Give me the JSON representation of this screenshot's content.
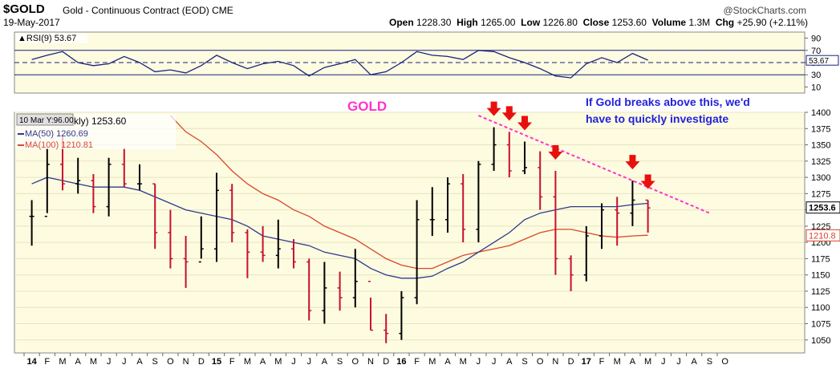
{
  "header": {
    "symbol": "$GOLD",
    "description": "Gold - Continuous Contract (EOD)",
    "exchange": "CME",
    "credit": "@StockCharts.com",
    "date": "19-May-2017",
    "open_label": "Open",
    "open": "1228.30",
    "high_label": "High",
    "high": "1265.00",
    "low_label": "Low",
    "low": "1226.80",
    "close_label": "Close",
    "close": "1253.60",
    "volume_label": "Volume",
    "volume": "1.3M",
    "chg_label": "Chg",
    "chg": "+25.90 (+2.11%)"
  },
  "colors": {
    "background": "#fdfbe0",
    "up_bar": "#000000",
    "down_bar": "#c8102e",
    "ma50": "#2e3a8c",
    "ma100": "#d9472b",
    "trendline": "#ff33cc",
    "arrow": "#e8100e",
    "annotation_text": "#2222dd",
    "gold_label": "#ff33cc"
  },
  "chart_data": [
    {
      "name": "rsi",
      "type": "line",
      "legend": "RSI(9) 53.67",
      "current_value": "53.67",
      "ylim": [
        0,
        100
      ],
      "y_ticks": [
        90,
        70,
        50,
        30,
        10
      ],
      "reference_lines": [
        70,
        50,
        30
      ],
      "x": [
        "2014-01",
        "2014-02",
        "2014-03",
        "2014-04",
        "2014-05",
        "2014-06",
        "2014-07",
        "2014-08",
        "2014-09",
        "2014-10",
        "2014-11",
        "2014-12",
        "2015-01",
        "2015-02",
        "2015-03",
        "2015-04",
        "2015-05",
        "2015-06",
        "2015-07",
        "2015-08",
        "2015-09",
        "2015-10",
        "2015-11",
        "2015-12",
        "2016-01",
        "2016-02",
        "2016-03",
        "2016-04",
        "2016-05",
        "2016-06",
        "2016-07",
        "2016-08",
        "2016-09",
        "2016-10",
        "2016-11",
        "2016-12",
        "2017-01",
        "2017-02",
        "2017-03",
        "2017-04",
        "2017-05"
      ],
      "values": [
        55,
        62,
        68,
        50,
        45,
        48,
        60,
        50,
        35,
        38,
        33,
        45,
        62,
        50,
        40,
        48,
        52,
        45,
        28,
        42,
        48,
        55,
        30,
        35,
        50,
        68,
        62,
        60,
        55,
        70,
        68,
        58,
        50,
        40,
        28,
        25,
        48,
        58,
        50,
        65,
        54
      ]
    },
    {
      "name": "price",
      "type": "ohlc-bar",
      "title": "GOLD",
      "ylim": [
        1030,
        1400
      ],
      "y_ticks": [
        1400,
        1375,
        1350,
        1325,
        1300,
        1275,
        1250,
        1225,
        1200,
        1175,
        1150,
        1125,
        1100,
        1075,
        1050
      ],
      "y_tag_close": "1253.6",
      "y_tag_ma": "1210.8",
      "x_ticks": [
        "14",
        "F",
        "M",
        "A",
        "M",
        "J",
        "J",
        "A",
        "S",
        "O",
        "N",
        "D",
        "15",
        "F",
        "M",
        "A",
        "M",
        "J",
        "J",
        "A",
        "S",
        "O",
        "N",
        "D",
        "16",
        "F",
        "M",
        "A",
        "M",
        "J",
        "J",
        "A",
        "S",
        "O",
        "N",
        "D",
        "17",
        "F",
        "M",
        "A",
        "M",
        "J",
        "J",
        "A",
        "S",
        "O"
      ],
      "legend": [
        {
          "label": "eekly) 1253.60"
        },
        {
          "label": "MA(50) 1260.69"
        },
        {
          "label": "MA(100) 1210.81"
        }
      ],
      "tooltip": "10 Mar Y:96.00",
      "annotation": "If Gold breaks above this, we'd have to quickly investigate",
      "annotation_line1": "If Gold breaks above this, we'd",
      "annotation_line2": "have to quickly investigate",
      "x": [
        "2014-01",
        "2014-02",
        "2014-03",
        "2014-04",
        "2014-05",
        "2014-06",
        "2014-07",
        "2014-08",
        "2014-09",
        "2014-10",
        "2014-11",
        "2014-12",
        "2015-01",
        "2015-02",
        "2015-03",
        "2015-04",
        "2015-05",
        "2015-06",
        "2015-07",
        "2015-08",
        "2015-09",
        "2015-10",
        "2015-11",
        "2015-12",
        "2016-01",
        "2016-02",
        "2016-03",
        "2016-04",
        "2016-05",
        "2016-06",
        "2016-07",
        "2016-08",
        "2016-09",
        "2016-10",
        "2016-11",
        "2016-12",
        "2017-01",
        "2017-02",
        "2017-03",
        "2017-04",
        "2017-05"
      ],
      "close": [
        1240,
        1320,
        1290,
        1295,
        1255,
        1320,
        1290,
        1290,
        1215,
        1175,
        1170,
        1190,
        1280,
        1215,
        1185,
        1180,
        1190,
        1170,
        1095,
        1130,
        1115,
        1140,
        1065,
        1060,
        1115,
        1235,
        1235,
        1290,
        1220,
        1320,
        1350,
        1310,
        1315,
        1270,
        1175,
        1150,
        1210,
        1250,
        1245,
        1265,
        1253
      ],
      "high": [
        1265,
        1345,
        1365,
        1330,
        1305,
        1330,
        1345,
        1320,
        1290,
        1250,
        1210,
        1240,
        1307,
        1290,
        1220,
        1225,
        1235,
        1205,
        1175,
        1170,
        1155,
        1190,
        1115,
        1090,
        1125,
        1265,
        1285,
        1300,
        1305,
        1325,
        1377,
        1370,
        1355,
        1340,
        1310,
        1180,
        1225,
        1260,
        1270,
        1295,
        1265
      ],
      "low": [
        1195,
        1245,
        1280,
        1275,
        1245,
        1240,
        1285,
        1280,
        1190,
        1160,
        1130,
        1175,
        1170,
        1200,
        1145,
        1170,
        1160,
        1160,
        1080,
        1075,
        1095,
        1100,
        1065,
        1045,
        1050,
        1105,
        1210,
        1215,
        1200,
        1200,
        1310,
        1300,
        1305,
        1250,
        1150,
        1125,
        1140,
        1190,
        1195,
        1225,
        1215
      ],
      "ma50": [
        1290,
        1300,
        1295,
        1290,
        1285,
        1285,
        1285,
        1280,
        1270,
        1260,
        1250,
        1245,
        1240,
        1235,
        1225,
        1210,
        1205,
        1200,
        1195,
        1185,
        1180,
        1175,
        1160,
        1150,
        1145,
        1145,
        1148,
        1160,
        1170,
        1185,
        1200,
        1215,
        1235,
        1245,
        1250,
        1255,
        1255,
        1255,
        1255,
        1258,
        1260
      ],
      "ma100": [
        null,
        null,
        null,
        null,
        null,
        null,
        null,
        null,
        null,
        1395,
        1370,
        1355,
        1335,
        1310,
        1290,
        1275,
        1265,
        1250,
        1240,
        1225,
        1215,
        1205,
        1190,
        1175,
        1165,
        1160,
        1160,
        1170,
        1180,
        1185,
        1190,
        1195,
        1205,
        1215,
        1220,
        1220,
        1215,
        1210,
        1208,
        1210,
        1211
      ],
      "trendline": {
        "from": [
          "2016-06",
          1395
        ],
        "to": [
          "2017-09",
          1245
        ]
      },
      "arrows": [
        "2016-07",
        "2016-08",
        "2016-09",
        "2016-11",
        "2017-04",
        "2017-05"
      ]
    }
  ]
}
